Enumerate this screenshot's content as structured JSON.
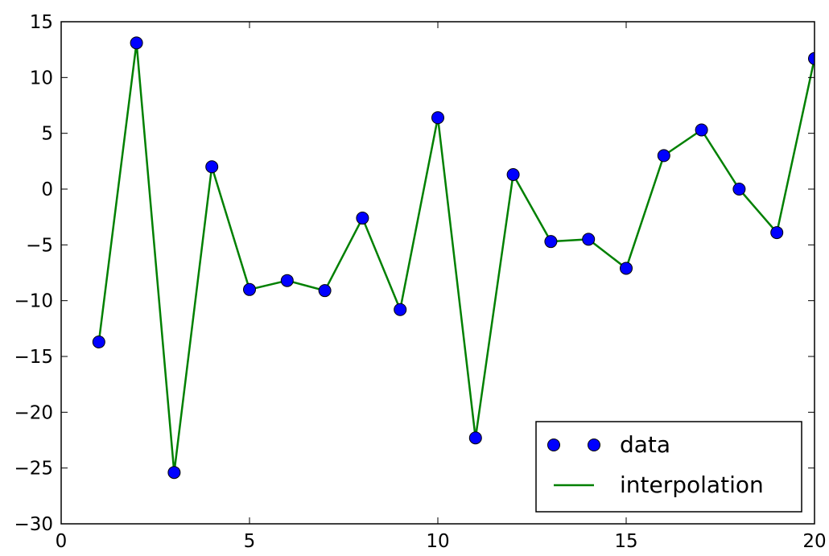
{
  "chart_data": {
    "type": "line",
    "title": "",
    "xlabel": "",
    "ylabel": "",
    "xlim": [
      0,
      20
    ],
    "ylim": [
      -30,
      15
    ],
    "xticks": [
      0,
      5,
      10,
      15,
      20
    ],
    "yticks": [
      15,
      10,
      5,
      0,
      -5,
      -10,
      -15,
      -20,
      -25,
      -30
    ],
    "xtick_labels": [
      "0",
      "5",
      "10",
      "15",
      "20"
    ],
    "ytick_labels": [
      "15",
      "10",
      "5",
      "0",
      "−5",
      "−10",
      "−15",
      "−20",
      "−25",
      "−30"
    ],
    "grid": false,
    "legend_position": "bottom-right",
    "series": [
      {
        "name": "data",
        "style": "markers",
        "color": "#0000ff",
        "x": [
          1,
          2,
          3,
          4,
          5,
          6,
          7,
          8,
          9,
          10,
          11,
          12,
          13,
          14,
          15,
          16,
          17,
          18,
          19,
          20
        ],
        "y": [
          -13.7,
          13.1,
          -25.4,
          2.0,
          -9.0,
          -8.2,
          -9.1,
          -2.6,
          -10.8,
          6.4,
          -22.3,
          1.3,
          -4.7,
          -4.5,
          -7.1,
          3.0,
          5.3,
          0.0,
          -3.9,
          11.7
        ]
      },
      {
        "name": "interpolation",
        "style": "line",
        "color": "#008000",
        "x": [
          1,
          2,
          3,
          4,
          5,
          6,
          7,
          8,
          9,
          10,
          11,
          12,
          13,
          14,
          15,
          16,
          17,
          18,
          19,
          20
        ],
        "y": [
          -13.7,
          13.1,
          -25.4,
          2.0,
          -9.0,
          -8.2,
          -9.1,
          -2.6,
          -10.8,
          6.4,
          -22.3,
          1.3,
          -4.7,
          -4.5,
          -7.1,
          3.0,
          5.3,
          0.0,
          -3.9,
          11.7
        ]
      }
    ]
  }
}
